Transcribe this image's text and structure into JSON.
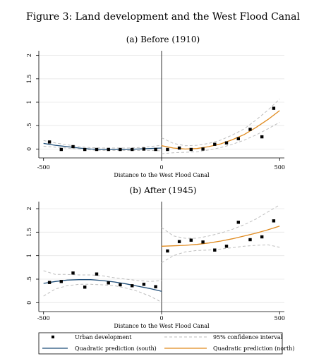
{
  "figure_title": "Figure 3: Land development and the West Flood Canal",
  "colors": {
    "points": "#000000",
    "south": "#1f4e79",
    "north": "#e08a1e",
    "ci": "#bdbdbd",
    "axis": "#000000",
    "grid": "#e6e6e6",
    "cutoff": "#000000"
  },
  "legend": {
    "items": [
      {
        "label": "Urban development",
        "kind": "marker"
      },
      {
        "label": "95% confidence interval",
        "kind": "dashed"
      },
      {
        "label": "Quadratic prediction (south)",
        "kind": "south"
      },
      {
        "label": "Quadratic prediction (north)",
        "kind": "north"
      }
    ]
  },
  "chart_data": [
    {
      "type": "scatter",
      "title": "(a) Before (1910)",
      "xlabel": "Distance to the West Flood Canal",
      "ylabel": "",
      "xlim": [
        -520,
        520
      ],
      "ylim": [
        -0.1,
        2.1
      ],
      "xticks": [
        -500,
        0,
        500
      ],
      "xtick_labels": [
        "-500",
        "0",
        "500"
      ],
      "yticks": [
        0,
        0.5,
        1,
        1.5,
        2
      ],
      "ytick_labels": [
        "0",
        ".5",
        "1",
        "1.5",
        "2"
      ],
      "cutoff": 0,
      "points": {
        "name": "Urban development",
        "x": [
          -475,
          -425,
          -375,
          -325,
          -275,
          -225,
          -175,
          -125,
          -75,
          -25,
          25,
          75,
          125,
          175,
          225,
          275,
          325,
          375,
          425,
          475
        ],
        "y": [
          0.15,
          -0.01,
          0.05,
          -0.01,
          -0.01,
          -0.01,
          -0.01,
          -0.01,
          0.0,
          -0.01,
          -0.01,
          0.02,
          -0.01,
          0.0,
          0.1,
          0.13,
          0.22,
          0.42,
          0.26,
          0.87
        ]
      },
      "south": {
        "name": "Quadratic prediction (south)",
        "x": [
          -500,
          -450,
          -400,
          -350,
          -300,
          -250,
          -200,
          -150,
          -100,
          -50,
          0
        ],
        "fit": [
          0.12,
          0.08,
          0.05,
          0.02,
          0.0,
          -0.01,
          -0.01,
          -0.01,
          0.0,
          0.01,
          0.02
        ],
        "ci_low": [
          0.06,
          0.04,
          0.02,
          0.0,
          -0.02,
          -0.03,
          -0.03,
          -0.03,
          -0.03,
          -0.03,
          -0.04
        ],
        "ci_high": [
          0.18,
          0.13,
          0.09,
          0.05,
          0.03,
          0.02,
          0.02,
          0.02,
          0.03,
          0.05,
          0.08
        ]
      },
      "north": {
        "name": "Quadratic prediction (north)",
        "x": [
          0,
          50,
          100,
          150,
          200,
          250,
          300,
          350,
          400,
          450,
          500
        ],
        "fit": [
          0.07,
          0.02,
          0.0,
          0.01,
          0.05,
          0.11,
          0.2,
          0.31,
          0.46,
          0.63,
          0.82
        ],
        "ci_low": [
          -0.1,
          -0.08,
          -0.07,
          -0.06,
          -0.02,
          0.03,
          0.1,
          0.19,
          0.3,
          0.43,
          0.57
        ],
        "ci_high": [
          0.24,
          0.12,
          0.07,
          0.08,
          0.12,
          0.19,
          0.3,
          0.43,
          0.62,
          0.83,
          1.07
        ]
      }
    },
    {
      "type": "scatter",
      "title": "(b) After (1945)",
      "xlabel": "Distance to the West Flood Canal",
      "ylabel": "",
      "xlim": [
        -520,
        520
      ],
      "ylim": [
        -0.1,
        2.15
      ],
      "xticks": [
        -500,
        0,
        500
      ],
      "xtick_labels": [
        "-500",
        "0",
        "500"
      ],
      "yticks": [
        0,
        0.5,
        1,
        1.5,
        2
      ],
      "ytick_labels": [
        "0",
        ".5",
        "1",
        "1.5",
        "2"
      ],
      "cutoff": 0,
      "points": {
        "name": "Urban development",
        "x": [
          -475,
          -425,
          -375,
          -325,
          -275,
          -225,
          -175,
          -125,
          -75,
          -25,
          25,
          75,
          125,
          175,
          225,
          275,
          325,
          375,
          425,
          475
        ],
        "y": [
          0.43,
          0.45,
          0.63,
          0.33,
          0.61,
          0.42,
          0.38,
          0.36,
          0.39,
          0.34,
          1.1,
          1.3,
          1.33,
          1.29,
          1.12,
          1.2,
          1.71,
          1.34,
          1.4,
          1.74
        ]
      },
      "south": {
        "name": "Quadratic prediction (south)",
        "x": [
          -500,
          -450,
          -400,
          -350,
          -300,
          -250,
          -200,
          -150,
          -100,
          -50,
          0
        ],
        "fit": [
          0.41,
          0.45,
          0.48,
          0.49,
          0.49,
          0.47,
          0.44,
          0.4,
          0.35,
          0.3,
          0.24
        ],
        "ci_low": [
          0.14,
          0.29,
          0.36,
          0.39,
          0.39,
          0.38,
          0.36,
          0.31,
          0.24,
          0.14,
          0.01
        ],
        "ci_high": [
          0.68,
          0.6,
          0.6,
          0.59,
          0.59,
          0.57,
          0.53,
          0.5,
          0.47,
          0.45,
          0.47
        ]
      },
      "north": {
        "name": "Quadratic prediction (north)",
        "x": [
          0,
          50,
          100,
          150,
          200,
          250,
          300,
          350,
          400,
          450,
          500
        ],
        "fit": [
          1.2,
          1.21,
          1.22,
          1.24,
          1.27,
          1.31,
          1.36,
          1.42,
          1.48,
          1.55,
          1.63
        ],
        "ci_low": [
          0.85,
          1.0,
          1.08,
          1.11,
          1.12,
          1.14,
          1.17,
          1.2,
          1.22,
          1.23,
          1.18
        ],
        "ci_high": [
          1.6,
          1.42,
          1.37,
          1.37,
          1.42,
          1.48,
          1.56,
          1.66,
          1.78,
          1.93,
          2.08
        ]
      }
    }
  ]
}
